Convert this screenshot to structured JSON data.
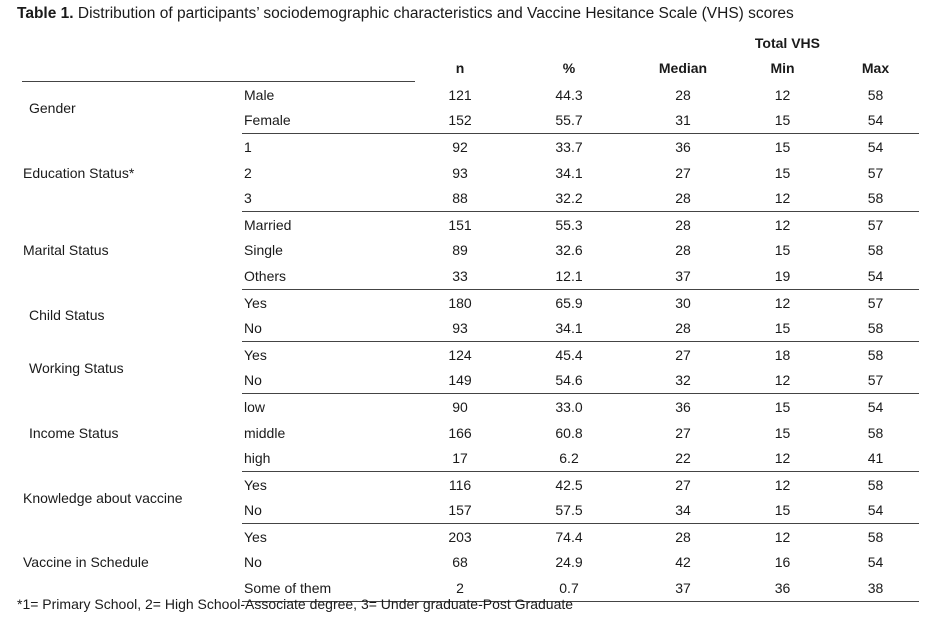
{
  "caption": {
    "label": "Table 1.",
    "text": " Distribution of participants’ sociodemographic characteristics and Vaccine Hesitance Scale (VHS) scores"
  },
  "headers": {
    "group": "Total VHS",
    "n": "n",
    "pct": "%",
    "median": "Median",
    "min": "Min",
    "max": "Max"
  },
  "groups": [
    {
      "name": "Gender",
      "indent": true,
      "rows": [
        {
          "label": "Male",
          "n": "121",
          "pct": "44.3",
          "median": "28",
          "min": "12",
          "max": "58"
        },
        {
          "label": "Female",
          "n": "152",
          "pct": "55.7",
          "median": "31",
          "min": "15",
          "max": "54"
        }
      ]
    },
    {
      "name": "Education Status*",
      "indent": false,
      "rows": [
        {
          "label": "1",
          "n": "92",
          "pct": "33.7",
          "median": "36",
          "min": "15",
          "max": "54"
        },
        {
          "label": "2",
          "n": "93",
          "pct": "34.1",
          "median": "27",
          "min": "15",
          "max": "57"
        },
        {
          "label": "3",
          "n": "88",
          "pct": "32.2",
          "median": "28",
          "min": "12",
          "max": "58"
        }
      ]
    },
    {
      "name": "Marital Status",
      "indent": false,
      "rows": [
        {
          "label": "Married",
          "n": "151",
          "pct": "55.3",
          "median": "28",
          "min": "12",
          "max": "57"
        },
        {
          "label": "Single",
          "n": "89",
          "pct": "32.6",
          "median": "28",
          "min": "15",
          "max": "58"
        },
        {
          "label": "Others",
          "n": "33",
          "pct": "12.1",
          "median": "37",
          "min": "19",
          "max": "54"
        }
      ]
    },
    {
      "name": "Child Status",
      "indent": true,
      "rows": [
        {
          "label": "Yes",
          "n": "180",
          "pct": "65.9",
          "median": "30",
          "min": "12",
          "max": "57"
        },
        {
          "label": "No",
          "n": "93",
          "pct": "34.1",
          "median": "28",
          "min": "15",
          "max": "58"
        }
      ]
    },
    {
      "name": "Working Status",
      "indent": true,
      "rows": [
        {
          "label": "Yes",
          "n": "124",
          "pct": "45.4",
          "median": "27",
          "min": "18",
          "max": "58"
        },
        {
          "label": "No",
          "n": "149",
          "pct": "54.6",
          "median": "32",
          "min": "12",
          "max": "57"
        }
      ]
    },
    {
      "name": "Income Status",
      "indent": true,
      "rows": [
        {
          "label": "low",
          "n": "90",
          "pct": "33.0",
          "median": "36",
          "min": "15",
          "max": "54"
        },
        {
          "label": "middle",
          "n": "166",
          "pct": "60.8",
          "median": "27",
          "min": "15",
          "max": "58"
        },
        {
          "label": "high",
          "n": "17",
          "pct": "6.2",
          "median": "22",
          "min": "12",
          "max": "41"
        }
      ]
    },
    {
      "name": "Knowledge about vaccine",
      "indent": false,
      "rows": [
        {
          "label": "Yes",
          "n": "116",
          "pct": "42.5",
          "median": "27",
          "min": "12",
          "max": "58"
        },
        {
          "label": "No",
          "n": "157",
          "pct": "57.5",
          "median": "34",
          "min": "15",
          "max": "54"
        }
      ]
    },
    {
      "name": "Vaccine in Schedule",
      "indent": false,
      "rows": [
        {
          "label": "Yes",
          "n": "203",
          "pct": "74.4",
          "median": "28",
          "min": "12",
          "max": "58"
        },
        {
          "label": "No",
          "n": "68",
          "pct": "24.9",
          "median": "42",
          "min": "16",
          "max": "54"
        },
        {
          "label": "Some of them",
          "n": "2",
          "pct": "0.7",
          "median": "37",
          "min": "36",
          "max": "38"
        }
      ]
    }
  ],
  "footnote": "*1= Primary School, 2= High School-Associate degree, 3= Under graduate-Post Graduate"
}
